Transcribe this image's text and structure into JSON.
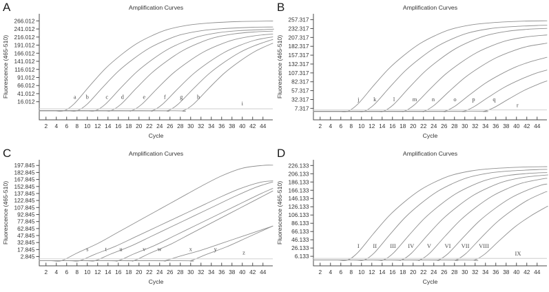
{
  "figure_name": "amplification-curves-figure",
  "colors": {
    "background": "#ffffff",
    "curve": "#8f8f8f",
    "flat_curve": "#d6d6d6",
    "axis": "#4a4a4a",
    "tick_text": "#333333",
    "title_text": "#333333",
    "curve_label_text": "#4a4a4a",
    "panel_letter_text": "#1a1a1a"
  },
  "shape_profiles": {
    "sigmoid": [
      [
        0,
        0
      ],
      [
        2,
        0.08
      ],
      [
        5,
        0.28
      ],
      [
        8,
        0.47
      ],
      [
        11,
        0.62
      ],
      [
        14,
        0.745
      ],
      [
        17,
        0.835
      ],
      [
        20,
        0.903
      ],
      [
        24,
        0.952
      ],
      [
        28,
        0.976
      ],
      [
        34,
        0.993
      ],
      [
        42,
        1.0
      ],
      [
        50,
        1.004
      ]
    ],
    "ramp": [
      [
        0,
        0
      ],
      [
        3,
        0.08
      ],
      [
        7,
        0.18
      ],
      [
        11,
        0.3
      ],
      [
        15,
        0.42
      ],
      [
        19,
        0.54
      ],
      [
        23,
        0.66
      ],
      [
        27,
        0.78
      ],
      [
        31,
        0.89
      ],
      [
        35,
        0.97
      ],
      [
        39,
        1.0
      ],
      [
        50,
        1.012
      ]
    ]
  },
  "chart_data": [
    {
      "type": "line",
      "panel_label": "A",
      "title": "Amplification Curves",
      "xlabel": "Cycle",
      "ylabel": "Fluorescence (465-510)",
      "grid": false,
      "legend": "none",
      "x_ticks": [
        2,
        4,
        6,
        8,
        10,
        12,
        14,
        16,
        18,
        20,
        22,
        24,
        26,
        28,
        30,
        32,
        34,
        36,
        38,
        40,
        42,
        44
      ],
      "xlim": [
        0.7,
        45.9
      ],
      "ylim": [
        -40,
        288
      ],
      "y_ticks": [
        "266.012",
        "241.012",
        "216.012",
        "191.012",
        "166.012",
        "141.012",
        "116.012",
        "91.012",
        "66.012",
        "41.012",
        "16.012"
      ],
      "series": [
        {
          "label": "a",
          "shape": "sigmoid",
          "onset": 5.5,
          "base": -12,
          "plateau": 266,
          "label_x": 7.6,
          "label_y": 25
        },
        {
          "label": "b",
          "shape": "sigmoid",
          "onset": 8.0,
          "base": -12,
          "plateau": 248,
          "label_x": 10.0,
          "label_y": 25
        },
        {
          "label": "c",
          "shape": "sigmoid",
          "onset": 11.5,
          "base": -12,
          "plateau": 242,
          "label_x": 13.8,
          "label_y": 25
        },
        {
          "label": "d",
          "shape": "sigmoid",
          "onset": 14.5,
          "base": -12,
          "plateau": 238,
          "label_x": 16.8,
          "label_y": 25
        },
        {
          "label": "e",
          "shape": "sigmoid",
          "onset": 18.5,
          "base": -12,
          "plateau": 232,
          "label_x": 21.0,
          "label_y": 25
        },
        {
          "label": "f",
          "shape": "sigmoid",
          "onset": 22.5,
          "base": -12,
          "plateau": 230,
          "label_x": 25.0,
          "label_y": 25
        },
        {
          "label": "g",
          "shape": "sigmoid",
          "onset": 25.5,
          "base": -12,
          "plateau": 230,
          "label_x": 28.2,
          "label_y": 25
        },
        {
          "label": "h",
          "shape": "sigmoid",
          "onset": 28.5,
          "base": -12,
          "plateau": 235,
          "label_x": 31.5,
          "label_y": 25
        },
        {
          "label": "i",
          "shape": "flat",
          "value": -6,
          "label_x": 40.0,
          "label_y": 5
        }
      ]
    },
    {
      "type": "line",
      "panel_label": "B",
      "title": "Amplification Curves",
      "xlabel": "Cycle",
      "ylabel": "Fluorescence (465-510)",
      "grid": false,
      "legend": "none",
      "x_ticks": [
        2,
        4,
        6,
        8,
        10,
        12,
        14,
        16,
        18,
        20,
        22,
        24,
        26,
        28,
        30,
        32,
        34,
        36,
        38,
        40,
        42,
        44
      ],
      "xlim": [
        0.7,
        45.9
      ],
      "ylim": [
        -25,
        274
      ],
      "y_ticks": [
        "257.317",
        "232.317",
        "207.317",
        "182.317",
        "157.317",
        "132.317",
        "107.317",
        "82.317",
        "57.317",
        "32.317",
        "7.317"
      ],
      "series": [
        {
          "label": "j",
          "shape": "sigmoid",
          "onset": 7.3,
          "base": -1,
          "plateau": 255,
          "label_x": 9.4,
          "label_y": 27
        },
        {
          "label": "k",
          "shape": "sigmoid",
          "onset": 10.5,
          "base": -1,
          "plateau": 243,
          "label_x": 12.6,
          "label_y": 27
        },
        {
          "label": "l",
          "shape": "sigmoid",
          "onset": 14.2,
          "base": -1,
          "plateau": 236,
          "label_x": 16.3,
          "label_y": 27
        },
        {
          "label": "m",
          "shape": "sigmoid",
          "onset": 18.2,
          "base": -1,
          "plateau": 220,
          "label_x": 20.3,
          "label_y": 27
        },
        {
          "label": "n",
          "shape": "sigmoid",
          "onset": 22.0,
          "base": -1,
          "plateau": 201,
          "label_x": 23.9,
          "label_y": 27
        },
        {
          "label": "o",
          "shape": "sigmoid",
          "onset": 26.0,
          "base": -1,
          "plateau": 168,
          "label_x": 28.1,
          "label_y": 27
        },
        {
          "label": "p",
          "shape": "sigmoid",
          "onset": 29.6,
          "base": -1,
          "plateau": 142,
          "label_x": 31.7,
          "label_y": 27
        },
        {
          "label": "q",
          "shape": "sigmoid",
          "onset": 33.6,
          "base": -1,
          "plateau": 126,
          "label_x": 35.7,
          "label_y": 27
        },
        {
          "label": "r",
          "shape": "flat",
          "value": 3,
          "label_x": 40.2,
          "label_y": 11
        }
      ]
    },
    {
      "type": "line",
      "panel_label": "C",
      "title": "Amplification Curves",
      "xlabel": "Cycle",
      "ylabel": "Fluorescence (465-510)",
      "grid": false,
      "legend": "none",
      "x_ticks": [
        2,
        4,
        6,
        8,
        10,
        12,
        14,
        16,
        18,
        20,
        22,
        24,
        26,
        28,
        30,
        32,
        34,
        36,
        38,
        40,
        42,
        44
      ],
      "xlim": [
        0.7,
        45.9
      ],
      "ylim": [
        -17,
        210
      ],
      "y_ticks": [
        "197.845",
        "182.845",
        "167.845",
        "152.845",
        "137.845",
        "122.845",
        "107.845",
        "92.845",
        "77.845",
        "62.845",
        "47.845",
        "32.845",
        "17.845",
        "2.845"
      ],
      "series": [
        {
          "label": "s",
          "shape": "ramp",
          "onset": 5.0,
          "base": -6,
          "plateau": 198,
          "label_x": 10.0,
          "label_y": 15
        },
        {
          "label": "t",
          "shape": "ramp",
          "onset": 8.5,
          "base": -6,
          "plateau": 167,
          "label_x": 13.6,
          "label_y": 15
        },
        {
          "label": "u",
          "shape": "ramp",
          "onset": 11.5,
          "base": -6,
          "plateau": 170,
          "label_x": 16.5,
          "label_y": 15
        },
        {
          "label": "v",
          "shape": "ramp",
          "onset": 16.0,
          "base": -6,
          "plateau": 174,
          "label_x": 21.0,
          "label_y": 15
        },
        {
          "label": "w",
          "shape": "ramp",
          "onset": 19.0,
          "base": -6,
          "plateau": 186,
          "label_x": 24.0,
          "label_y": 15
        },
        {
          "label": "x",
          "shape": "ramp",
          "onset": 25.0,
          "base": -6,
          "plateau": 118,
          "label_x": 30.0,
          "label_y": 15
        },
        {
          "label": "y",
          "shape": "ramp",
          "onset": 30.0,
          "base": -6,
          "plateau": 160,
          "label_x": 34.8,
          "label_y": 15
        },
        {
          "label": "z",
          "shape": "flat",
          "value": -2,
          "label_x": 40.3,
          "label_y": 7
        }
      ]
    },
    {
      "type": "line",
      "panel_label": "D",
      "title": "Amplification Curves",
      "xlabel": "Cycle",
      "ylabel": "Fluorescence (465-510)",
      "grid": false,
      "legend": "none",
      "x_ticks": [
        2,
        4,
        6,
        8,
        10,
        12,
        14,
        16,
        18,
        20,
        22,
        24,
        26,
        28,
        30,
        32,
        34,
        36,
        38,
        40,
        42,
        44
      ],
      "xlim": [
        0.7,
        45.9
      ],
      "ylim": [
        -17,
        240
      ],
      "y_ticks": [
        "226.133",
        "206.133",
        "186.133",
        "166.133",
        "146.133",
        "126.133",
        "106.133",
        "86.133",
        "66.133",
        "46.133",
        "26.133",
        "6.133"
      ],
      "series": [
        {
          "label": "I",
          "shape": "sigmoid",
          "onset": 7.3,
          "base": -3,
          "plateau": 224,
          "label_x": 9.4,
          "label_y": 26
        },
        {
          "label": "II",
          "shape": "sigmoid",
          "onset": 10.5,
          "base": -3,
          "plateau": 218,
          "label_x": 12.6,
          "label_y": 26
        },
        {
          "label": "III",
          "shape": "sigmoid",
          "onset": 14.2,
          "base": -3,
          "plateau": 212,
          "label_x": 16.1,
          "label_y": 26
        },
        {
          "label": "IV",
          "shape": "sigmoid",
          "onset": 17.7,
          "base": -3,
          "plateau": 208,
          "label_x": 19.6,
          "label_y": 26
        },
        {
          "label": "V",
          "shape": "sigmoid",
          "onset": 21.2,
          "base": -3,
          "plateau": 204,
          "label_x": 23.1,
          "label_y": 26
        },
        {
          "label": "VI",
          "shape": "sigmoid",
          "onset": 24.8,
          "base": -3,
          "plateau": 198,
          "label_x": 26.7,
          "label_y": 26
        },
        {
          "label": "VII",
          "shape": "sigmoid",
          "onset": 28.2,
          "base": -3,
          "plateau": 192,
          "label_x": 30.1,
          "label_y": 26
        },
        {
          "label": "VIII",
          "shape": "sigmoid",
          "onset": 31.8,
          "base": -3,
          "plateau": 170,
          "label_x": 33.7,
          "label_y": 26
        },
        {
          "label": "IX",
          "shape": "flat",
          "value": 1,
          "label_x": 40.3,
          "label_y": 8
        }
      ]
    }
  ]
}
